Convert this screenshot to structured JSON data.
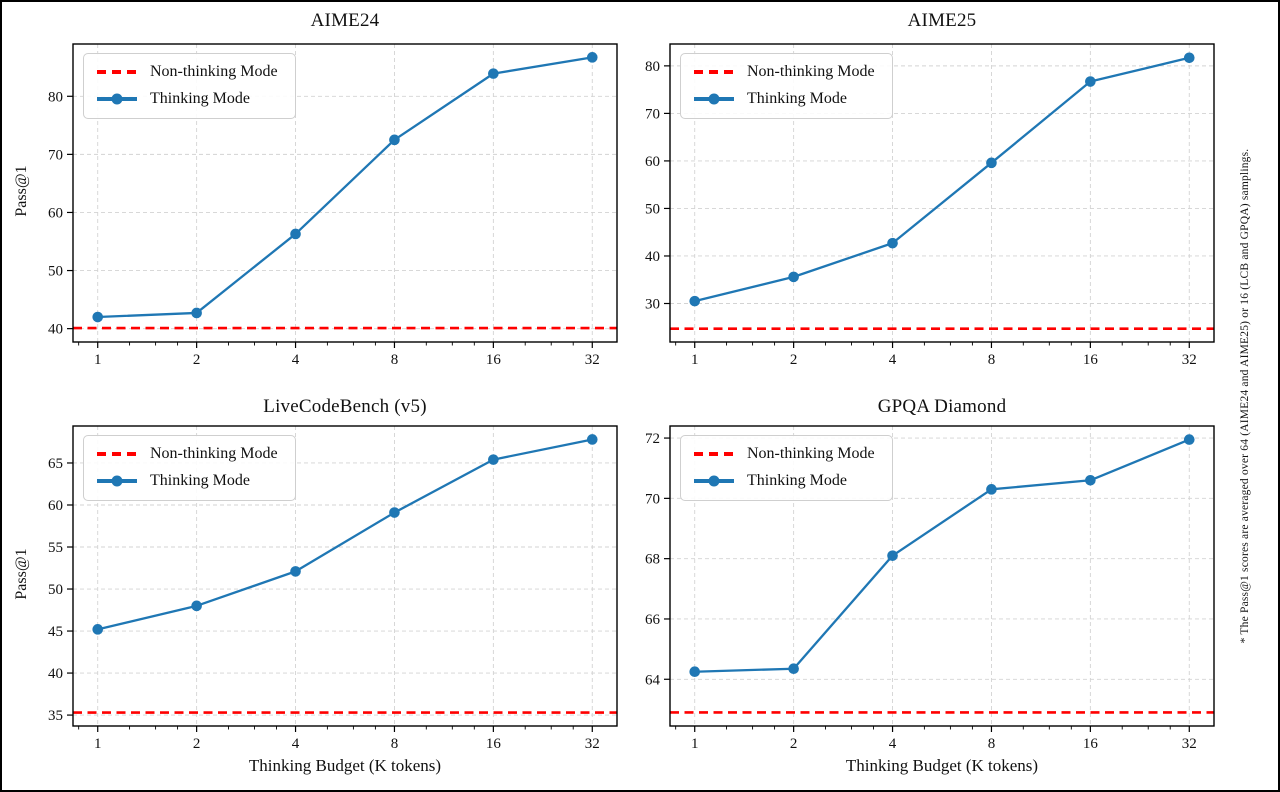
{
  "figure": {
    "background": "#ffffff",
    "border_color": "#000000",
    "note": "* The Pass@1 scores are averaged over 64 (AIME24 and AIME25) or 16 (LCB and GPQA) samplings."
  },
  "legend": {
    "non_thinking_label": "Non-thinking Mode",
    "thinking_label": "Thinking Mode",
    "position": "upper left"
  },
  "colors": {
    "thinking_line": "#1f77b4",
    "non_thinking_line": "#ff0000",
    "grid": "#d3d3d3",
    "spine": "#000000",
    "text": "#111111"
  },
  "axis": {
    "xlabel": "Thinking Budget (K tokens)",
    "ylabel": "Pass@1",
    "xscale": "log2",
    "xlim_log2": [
      -0.25,
      5.25
    ],
    "x_ticks": [
      1,
      2,
      4,
      8,
      16,
      32
    ]
  },
  "chart_data": [
    {
      "type": "line",
      "title": "AIME24",
      "xlabel": "Thinking Budget (K tokens)",
      "ylabel": "Pass@1",
      "xscale": "log2",
      "x": [
        1,
        2,
        4,
        8,
        16,
        32
      ],
      "series": [
        {
          "name": "Thinking Mode",
          "values": [
            42.0,
            42.7,
            56.3,
            72.5,
            83.9,
            86.7
          ]
        },
        {
          "name": "Non-thinking Mode",
          "values": [
            40.1,
            40.1,
            40.1,
            40.1,
            40.1,
            40.1
          ]
        }
      ],
      "non_thinking_value": 40.1,
      "ylim": [
        37.7,
        89.0
      ],
      "yticks": [
        40,
        50,
        60,
        70,
        80
      ],
      "grid": true,
      "legend_position": "upper left"
    },
    {
      "type": "line",
      "title": "AIME25",
      "xlabel": "Thinking Budget (K tokens)",
      "ylabel": "Pass@1",
      "xscale": "log2",
      "x": [
        1,
        2,
        4,
        8,
        16,
        32
      ],
      "series": [
        {
          "name": "Thinking Mode",
          "values": [
            30.5,
            35.6,
            42.7,
            59.6,
            76.7,
            81.7
          ]
        },
        {
          "name": "Non-thinking Mode",
          "values": [
            24.7,
            24.7,
            24.7,
            24.7,
            24.7,
            24.7
          ]
        }
      ],
      "non_thinking_value": 24.7,
      "ylim": [
        21.9,
        84.6
      ],
      "yticks": [
        30,
        40,
        50,
        60,
        70,
        80
      ],
      "grid": true,
      "legend_position": "upper left"
    },
    {
      "type": "line",
      "title": "LiveCodeBench (v5)",
      "xlabel": "Thinking Budget (K tokens)",
      "ylabel": "Pass@1",
      "xscale": "log2",
      "x": [
        1,
        2,
        4,
        8,
        16,
        32
      ],
      "series": [
        {
          "name": "Thinking Mode",
          "values": [
            45.2,
            48.0,
            52.1,
            59.1,
            65.4,
            67.8
          ]
        },
        {
          "name": "Non-thinking Mode",
          "values": [
            35.3,
            35.3,
            35.3,
            35.3,
            35.3,
            35.3
          ]
        }
      ],
      "non_thinking_value": 35.3,
      "ylim": [
        33.7,
        69.4
      ],
      "yticks": [
        35,
        40,
        45,
        50,
        55,
        60,
        65
      ],
      "grid": true,
      "legend_position": "upper left"
    },
    {
      "type": "line",
      "title": "GPQA Diamond",
      "xlabel": "Thinking Budget (K tokens)",
      "ylabel": "Pass@1",
      "xscale": "log2",
      "x": [
        1,
        2,
        4,
        8,
        16,
        32
      ],
      "series": [
        {
          "name": "Thinking Mode",
          "values": [
            64.25,
            64.35,
            68.1,
            70.3,
            70.6,
            71.95
          ]
        },
        {
          "name": "Non-thinking Mode",
          "values": [
            62.9,
            62.9,
            62.9,
            62.9,
            62.9,
            62.9
          ]
        }
      ],
      "non_thinking_value": 62.9,
      "ylim": [
        62.45,
        72.4
      ],
      "yticks": [
        64,
        66,
        68,
        70,
        72
      ],
      "grid": true,
      "legend_position": "upper left"
    }
  ]
}
